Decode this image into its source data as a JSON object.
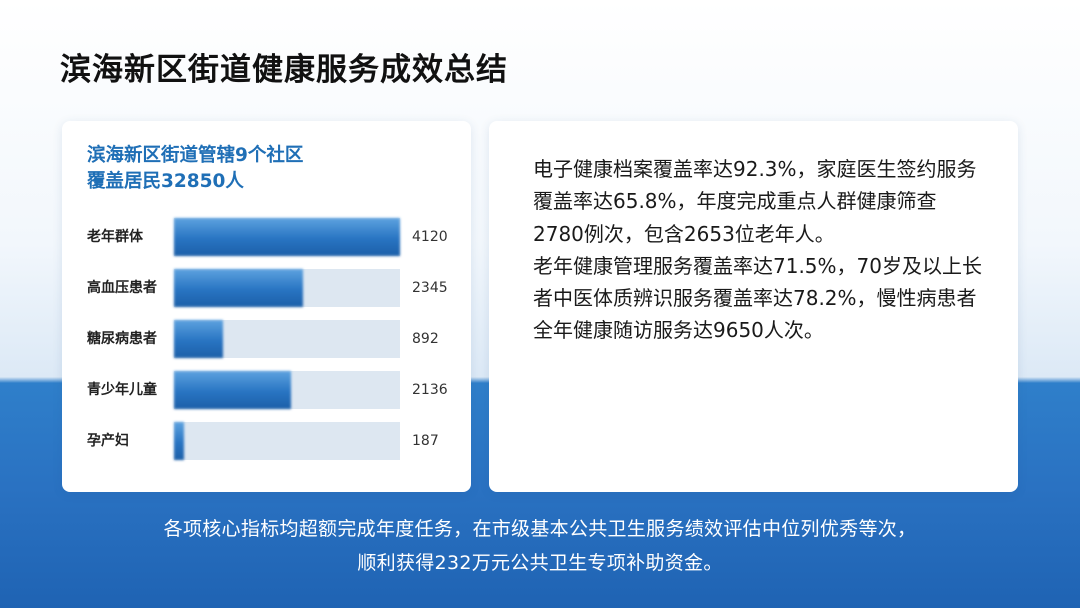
{
  "title": "滨海新区街道健康服务成效总结",
  "chart_card": {
    "heading_line1": "滨海新区街道管辖9个社区",
    "heading_line2": "覆盖居民32850人"
  },
  "chart_data": {
    "type": "bar",
    "orientation": "horizontal",
    "title": "滨海新区街道管辖9个社区 覆盖居民32850人",
    "categories": [
      "老年群体",
      "高血压患者",
      "糖尿病患者",
      "青少年儿童",
      "孕产妇"
    ],
    "values": [
      4120,
      2345,
      892,
      2136,
      187
    ],
    "xlim": [
      0,
      4120
    ],
    "grid": false,
    "legend": "none",
    "colors": {
      "bar": "#2874c2",
      "track": "#dde7f1"
    }
  },
  "summary": {
    "paragraph1": "电子健康档案覆盖率达92.3%，家庭医生签约服务覆盖率达65.8%，年度完成重点人群健康筛查2780例次，包含2653位老年人。",
    "paragraph2": "老年健康管理服务覆盖率达71.5%，70岁及以上长者中医体质辨识服务覆盖率达78.2%，慢性病患者全年健康随访服务达9650人次。"
  },
  "footer": {
    "line1": "各项核心指标均超额完成年度任务，在市级基本公共卫生服务绩效评估中位列优秀等次，",
    "line2": "顺利获得232万元公共卫生专项补助资金。"
  },
  "colors": {
    "accent": "#1f6fb6",
    "band": "#2a72c2"
  }
}
